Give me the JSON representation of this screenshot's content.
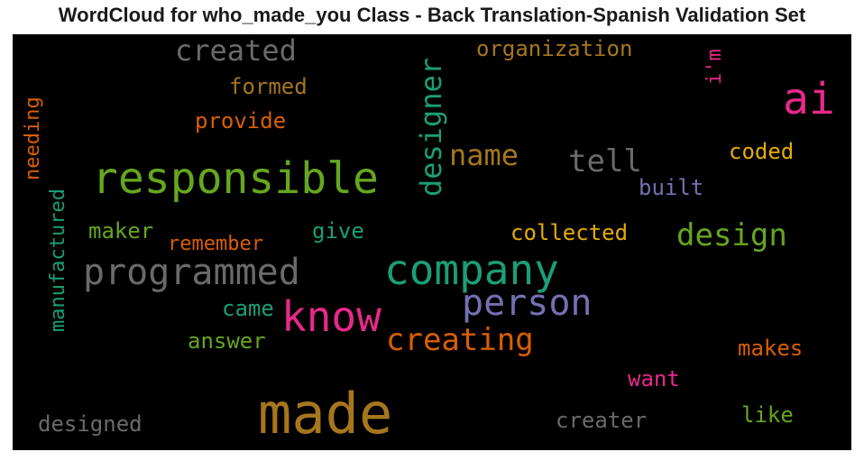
{
  "title": "WordCloud for who_made_you Class - Back Translation-Spanish Validation Set",
  "palette": {
    "background": "#000000",
    "gray": "#6a6a6a",
    "pink": "#e7298a",
    "brown": "#a6761d",
    "green": "#66a61e",
    "teal": "#1b9e77",
    "orange": "#d95f02",
    "purple": "#7570b3",
    "gold": "#e6ab02"
  },
  "words": [
    {
      "text": "made"
    },
    {
      "text": "responsible"
    },
    {
      "text": "company"
    },
    {
      "text": "know"
    },
    {
      "text": "programmed"
    },
    {
      "text": "person"
    },
    {
      "text": "ai"
    },
    {
      "text": "created"
    },
    {
      "text": "designer"
    },
    {
      "text": "creating"
    },
    {
      "text": "design"
    },
    {
      "text": "name"
    },
    {
      "text": "tell"
    },
    {
      "text": "manufactured"
    },
    {
      "text": "designed"
    },
    {
      "text": "creater"
    },
    {
      "text": "organization"
    },
    {
      "text": "collected"
    },
    {
      "text": "coded"
    },
    {
      "text": "makes"
    },
    {
      "text": "remember"
    },
    {
      "text": "provide"
    },
    {
      "text": "formed"
    },
    {
      "text": "needing"
    },
    {
      "text": "built"
    },
    {
      "text": "answer"
    },
    {
      "text": "maker"
    },
    {
      "text": "give"
    },
    {
      "text": "came"
    },
    {
      "text": "want"
    },
    {
      "text": "like"
    },
    {
      "text": "i'm"
    }
  ]
}
